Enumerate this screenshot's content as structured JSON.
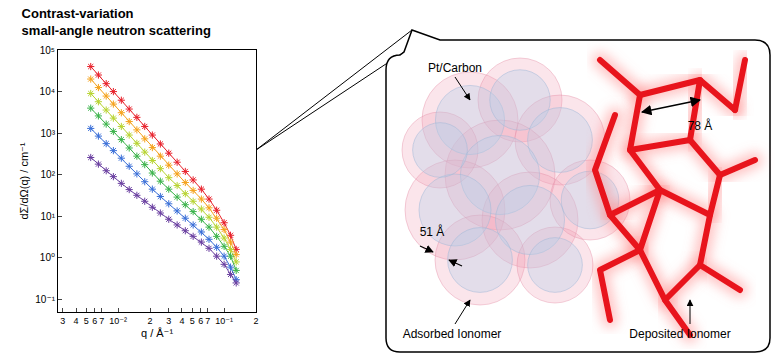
{
  "chart_data": {
    "type": "scatter",
    "title": "Contrast-variation\nsmall-angle neutron scattering",
    "x_label": "q / Å⁻¹",
    "y_label": "dΣ/dΩ(q) / cm⁻¹",
    "log": true,
    "grid": false,
    "marker": "asterisk",
    "line_style": "solid",
    "x": [
      0.0055,
      0.0065,
      0.0077,
      0.009,
      0.0107,
      0.0127,
      0.015,
      0.0178,
      0.021,
      0.025,
      0.03,
      0.036,
      0.043,
      0.051,
      0.061,
      0.072,
      0.085,
      0.1,
      0.115,
      0.13
    ],
    "series": [
      {
        "color": "#e8202a",
        "values": [
          40000,
          25000,
          15500,
          10000,
          6200,
          3800,
          2400,
          1450,
          900,
          550,
          330,
          200,
          120,
          75,
          45,
          26,
          14,
          7,
          3.5,
          1.6
        ]
      },
      {
        "color": "#f5a21b",
        "values": [
          20000,
          12500,
          7800,
          5000,
          3100,
          1900,
          1200,
          730,
          450,
          280,
          170,
          105,
          65,
          42,
          26,
          16,
          9,
          4.8,
          2.4,
          1.2
        ]
      },
      {
        "color": "#b8d432",
        "values": [
          9000,
          5700,
          3600,
          2300,
          1450,
          900,
          570,
          350,
          220,
          140,
          85,
          55,
          35,
          23,
          15,
          9.5,
          5.5,
          3,
          1.6,
          0.8
        ]
      },
      {
        "color": "#3cb44b",
        "values": [
          4000,
          2600,
          1650,
          1100,
          700,
          440,
          280,
          175,
          110,
          70,
          45,
          29,
          19,
          13,
          8.5,
          5.5,
          3.3,
          1.9,
          1.1,
          0.5
        ]
      },
      {
        "color": "#3a6fd8",
        "values": [
          1300,
          850,
          560,
          380,
          250,
          160,
          105,
          68,
          45,
          30,
          20,
          13.5,
          9,
          6.2,
          4.2,
          2.8,
          1.8,
          1.1,
          0.6,
          0.3
        ]
      },
      {
        "color": "#6a3fa0",
        "values": [
          260,
          180,
          125,
          90,
          62,
          44,
          32,
          23,
          16.5,
          12,
          8.5,
          6.2,
          4.5,
          3.3,
          2.4,
          1.7,
          1.1,
          0.7,
          0.4,
          0.25
        ]
      }
    ],
    "xlim": [
      0.0027,
      0.2
    ],
    "xticks": [
      {
        "value": 0.003,
        "label": "3"
      },
      {
        "value": 0.004,
        "label": "4"
      },
      {
        "value": 0.005,
        "label": "5"
      },
      {
        "value": 0.006,
        "label": "6"
      },
      {
        "value": 0.007,
        "label": "7"
      },
      {
        "value": 0.01,
        "label": "10⁻²"
      },
      {
        "value": 0.02,
        "label": "2"
      },
      {
        "value": 0.03,
        "label": "3"
      },
      {
        "value": 0.04,
        "label": "4"
      },
      {
        "value": 0.05,
        "label": "5"
      },
      {
        "value": 0.06,
        "label": "6"
      },
      {
        "value": 0.07,
        "label": "7"
      },
      {
        "value": 0.1,
        "label": "10⁻¹"
      },
      {
        "value": 0.2,
        "label": "2"
      }
    ],
    "ylim": [
      0.05,
      100000
    ],
    "yticks": [
      {
        "value": 0.1,
        "label": "10⁻¹"
      },
      {
        "value": 1,
        "label": "10⁰"
      },
      {
        "value": 10,
        "label": "10¹"
      },
      {
        "value": 100,
        "label": "10²"
      },
      {
        "value": 1000,
        "label": "10³"
      },
      {
        "value": 10000,
        "label": "10⁴"
      },
      {
        "value": 100000,
        "label": "10⁵"
      }
    ]
  },
  "diagram": {
    "labels": {
      "pt_carbon": "Pt/Carbon",
      "adsorbed_thickness": "51 Å",
      "deposited_spacing": "78 Å",
      "adsorbed": "Adsorbed Ionomer",
      "deposited": "Deposited Ionomer"
    }
  }
}
